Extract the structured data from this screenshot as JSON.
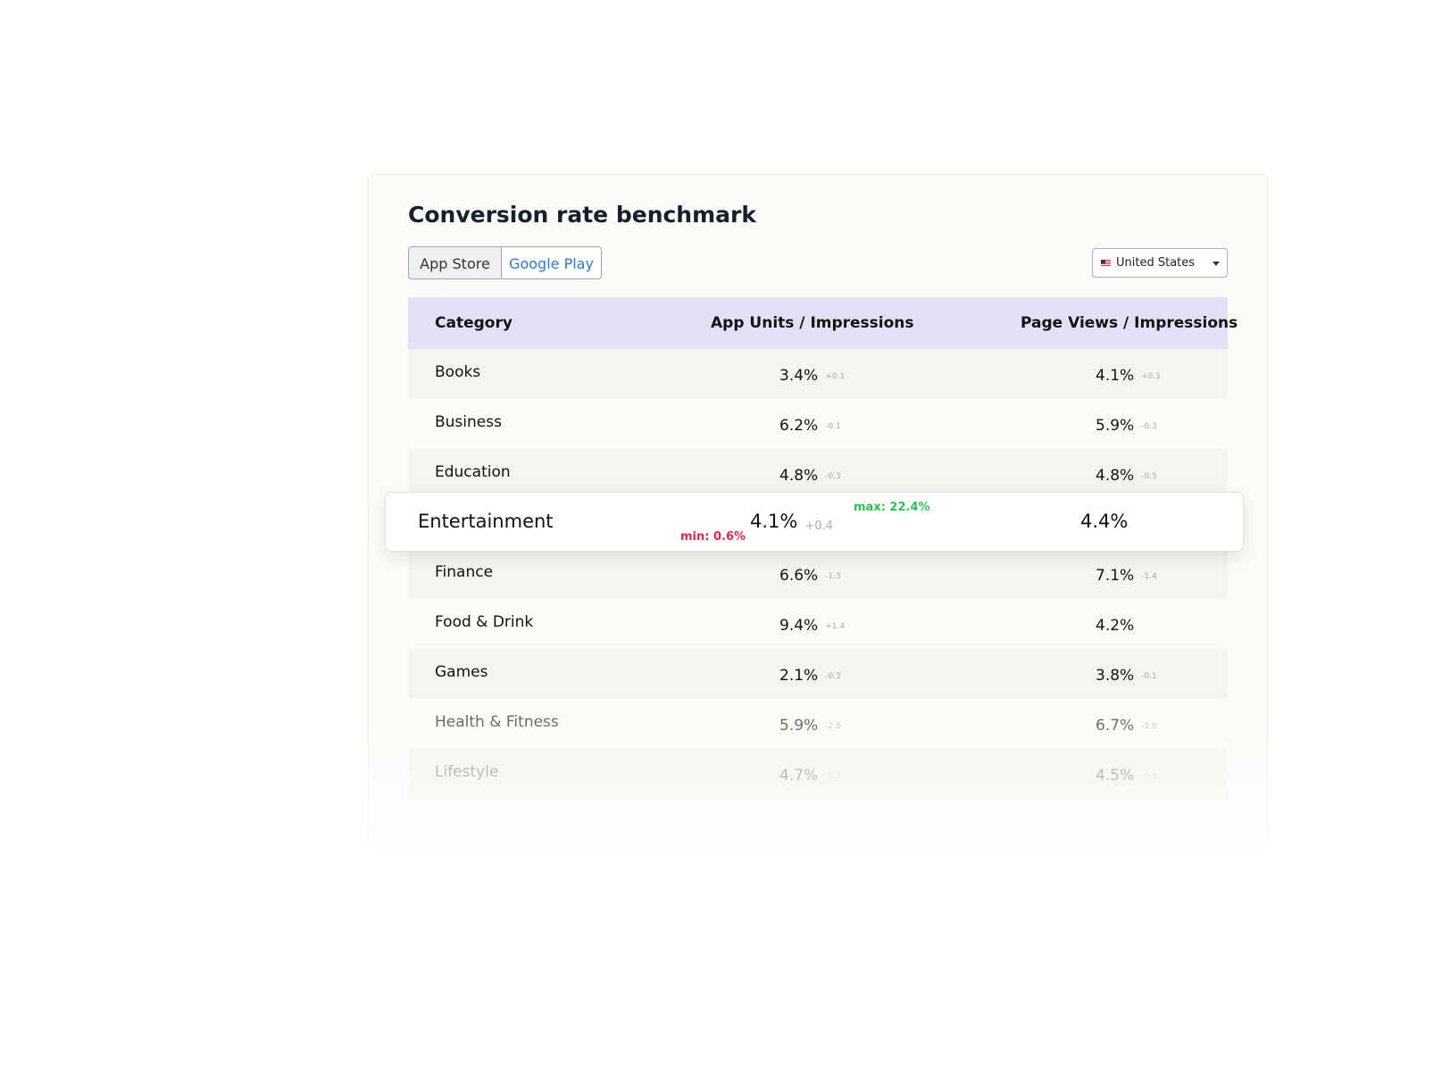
{
  "header": {
    "title": "Conversion rate benchmark"
  },
  "tabs": [
    "App Store",
    "Google Play"
  ],
  "country": "United States",
  "table": {
    "columns": [
      "Category",
      "App Units / Impressions",
      "Page Views / Impressions"
    ],
    "rows": [
      {
        "category": "Books",
        "app_units": "3.4%",
        "app_units_delta": "+0.1",
        "page_views": "4.1%",
        "page_views_delta": "+0.1"
      },
      {
        "category": "Business",
        "app_units": "6.2%",
        "app_units_delta": "-0.1",
        "page_views": "5.9%",
        "page_views_delta": "-0.3"
      },
      {
        "category": "Education",
        "app_units": "4.8%",
        "app_units_delta": "-0.3",
        "page_views": "4.8%",
        "page_views_delta": "-0.5"
      },
      {
        "category": "Entertainment",
        "app_units": "4.1%",
        "app_units_delta": "+0.4",
        "page_views": "4.4%",
        "min": "min: 0.6%",
        "max": "max: 22.4%"
      },
      {
        "category": "Finance",
        "app_units": "6.6%",
        "app_units_delta": "-1.3",
        "page_views": "7.1%",
        "page_views_delta": "-1.4"
      },
      {
        "category": "Food & Drink",
        "app_units": "9.4%",
        "app_units_delta": "+1.4",
        "page_views": "4.2%"
      },
      {
        "category": "Games",
        "app_units": "2.1%",
        "app_units_delta": "-0.3",
        "page_views": "3.8%",
        "page_views_delta": "-0.1"
      },
      {
        "category": "Health & Fitness",
        "app_units": "5.9%",
        "app_units_delta": "-2.0",
        "page_views": "6.7%",
        "page_views_delta": "-1.0"
      },
      {
        "category": "Lifestyle",
        "app_units": "4.7%",
        "app_units_delta": "-0.7",
        "page_views": "4.5%",
        "page_views_delta": "-0.2"
      }
    ]
  }
}
